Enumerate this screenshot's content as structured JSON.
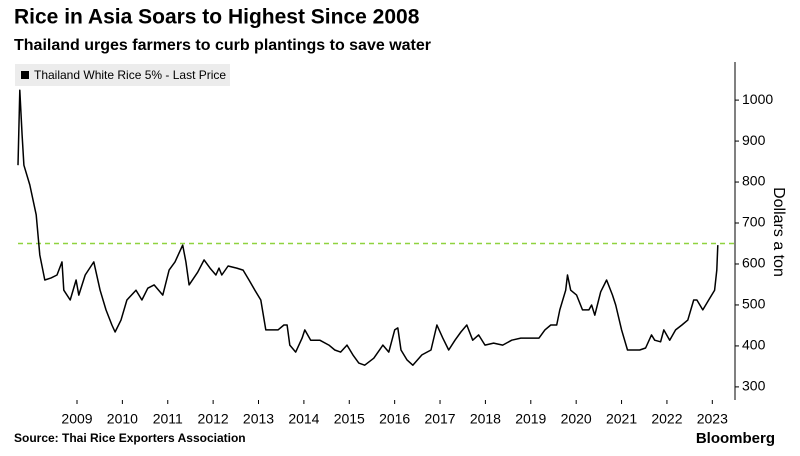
{
  "chart_data": {
    "type": "line",
    "title": "Rice in Asia Soars to Highest Since 2008",
    "subtitle": "Thailand urges farmers to curb plantings to save water",
    "y_axis_label": "Dollars a ton",
    "source": "Source: Thai Rice Exporters Association",
    "brand": "Bloomberg",
    "xlim": [
      2008.2,
      2024.0
    ],
    "ylim": [
      268,
      1093
    ],
    "xticks": [
      {
        "value": 2009.5,
        "label": "2009"
      },
      {
        "value": 2010.5,
        "label": "2010"
      },
      {
        "value": 2011.5,
        "label": "2011"
      },
      {
        "value": 2012.5,
        "label": "2012"
      },
      {
        "value": 2013.5,
        "label": "2013"
      },
      {
        "value": 2014.5,
        "label": "2014"
      },
      {
        "value": 2015.5,
        "label": "2015"
      },
      {
        "value": 2016.5,
        "label": "2016"
      },
      {
        "value": 2017.5,
        "label": "2017"
      },
      {
        "value": 2018.5,
        "label": "2018"
      },
      {
        "value": 2019.5,
        "label": "2019"
      },
      {
        "value": 2020.5,
        "label": "2020"
      },
      {
        "value": 2021.5,
        "label": "2021"
      },
      {
        "value": 2022.5,
        "label": "2022"
      },
      {
        "value": 2023.5,
        "label": "2023"
      }
    ],
    "yticks": [
      300,
      400,
      500,
      600,
      700,
      800,
      900,
      1000
    ],
    "y_axis_side": "right",
    "reference_line": {
      "value": 650,
      "color": "#8fd33f",
      "style": "dashed"
    },
    "legend_position": "top-left",
    "x": [
      2008.2,
      2008.24,
      2008.29,
      2008.33,
      2008.46,
      2008.6,
      2008.68,
      2008.79,
      2008.93,
      2009.06,
      2009.17,
      2009.21,
      2009.35,
      2009.48,
      2009.54,
      2009.68,
      2009.87,
      2010.01,
      2010.14,
      2010.27,
      2010.34,
      2010.47,
      2010.6,
      2010.8,
      2010.93,
      2011.06,
      2011.2,
      2011.39,
      2011.53,
      2011.66,
      2011.83,
      2011.9,
      2011.97,
      2012.16,
      2012.3,
      2012.43,
      2012.56,
      2012.63,
      2012.69,
      2012.83,
      2013.02,
      2013.16,
      2013.29,
      2013.42,
      2013.55,
      2013.66,
      2013.79,
      2013.93,
      2014.06,
      2014.13,
      2014.19,
      2014.32,
      2014.46,
      2014.52,
      2014.65,
      2014.85,
      2015.05,
      2015.18,
      2015.31,
      2015.45,
      2015.58,
      2015.71,
      2015.84,
      2016.04,
      2016.24,
      2016.37,
      2016.5,
      2016.57,
      2016.64,
      2016.77,
      2016.9,
      2017.1,
      2017.3,
      2017.43,
      2017.56,
      2017.69,
      2017.83,
      2017.96,
      2018.09,
      2018.22,
      2018.35,
      2018.49,
      2018.68,
      2018.88,
      2019.08,
      2019.28,
      2019.48,
      2019.68,
      2019.81,
      2019.94,
      2020.07,
      2020.14,
      2020.27,
      2020.31,
      2020.38,
      2020.51,
      2020.64,
      2020.78,
      2020.84,
      2020.91,
      2021.04,
      2021.17,
      2021.3,
      2021.37,
      2021.5,
      2021.63,
      2021.77,
      2021.9,
      2022.03,
      2022.16,
      2022.23,
      2022.36,
      2022.43,
      2022.56,
      2022.69,
      2022.83,
      2022.96,
      2023.09,
      2023.16,
      2023.29,
      2023.42,
      2023.55,
      2023.6,
      2023.62
    ],
    "series": [
      {
        "name": "Thailand White Rice 5% - Last Price",
        "color": "#000000",
        "values": [
          841,
          1024,
          915,
          841,
          793,
          720,
          622,
          561,
          566,
          573,
          605,
          536,
          512,
          561,
          524,
          573,
          605,
          536,
          488,
          451,
          434,
          463,
          512,
          536,
          512,
          541,
          549,
          524,
          585,
          605,
          646,
          605,
          549,
          580,
          610,
          590,
          573,
          590,
          573,
          595,
          590,
          585,
          561,
          536,
          512,
          439,
          439,
          439,
          451,
          451,
          402,
          385,
          419,
          439,
          414,
          414,
          402,
          390,
          385,
          402,
          378,
          358,
          353,
          370,
          402,
          385,
          439,
          444,
          390,
          366,
          353,
          378,
          390,
          451,
          419,
          390,
          414,
          434,
          451,
          414,
          427,
          402,
          407,
          402,
          414,
          419,
          419,
          419,
          439,
          451,
          451,
          488,
          536,
          573,
          536,
          524,
          488,
          488,
          500,
          475,
          532,
          561,
          524,
          500,
          439,
          390,
          390,
          390,
          395,
          427,
          414,
          410,
          439,
          414,
          439,
          451,
          463,
          512,
          512,
          488,
          512,
          536,
          585,
          646
        ]
      }
    ]
  }
}
